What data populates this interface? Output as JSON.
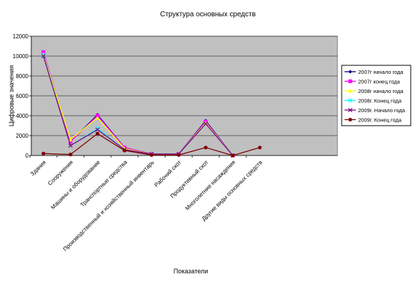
{
  "chart_data": {
    "type": "line",
    "title": "Структура основных средств",
    "xlabel": "Показатели",
    "ylabel": "Цифровые значения",
    "ylim": [
      0,
      12000
    ],
    "yticks": [
      "0",
      "2000",
      "4000",
      "6000",
      "8000",
      "10000",
      "12000"
    ],
    "grid": true,
    "legend_position": "right",
    "plot_background": "#c0c0c0",
    "categories": [
      "Здания",
      "Сооружения",
      "Машины и оборудование",
      "Транспортные средства",
      "Производственный и хозяйственный инвентарь",
      "Рабочий скот",
      "Продуктивный скот",
      "Многолетние насаждения",
      "Другие виды основных средств"
    ],
    "series": [
      {
        "name": "2007г начало года",
        "color": "#000080",
        "marker": "diamond",
        "values": [
          10400,
          1400,
          4100,
          800,
          150,
          150,
          3500,
          0,
          null
        ]
      },
      {
        "name": "2007г конец года",
        "color": "#ff00ff",
        "marker": "square",
        "values": [
          10400,
          1400,
          4000,
          800,
          150,
          150,
          3400,
          0,
          null
        ]
      },
      {
        "name": "2008г начало года",
        "color": "#ffff00",
        "marker": "triangle",
        "values": [
          10200,
          1600,
          3800,
          700,
          150,
          150,
          3300,
          0,
          null
        ]
      },
      {
        "name": "2008г. Конец года",
        "color": "#00ffff",
        "marker": "x",
        "values": [
          10100,
          1000,
          2700,
          600,
          150,
          150,
          3200,
          0,
          null
        ]
      },
      {
        "name": "2009г. Начало года",
        "color": "#800080",
        "marker": "x",
        "values": [
          10000,
          1000,
          2600,
          600,
          150,
          150,
          3200,
          0,
          null
        ]
      },
      {
        "name": "2009г. Конец года",
        "color": "#800000",
        "marker": "circle",
        "values": [
          200,
          100,
          2200,
          500,
          50,
          50,
          800,
          0,
          800
        ]
      }
    ]
  }
}
